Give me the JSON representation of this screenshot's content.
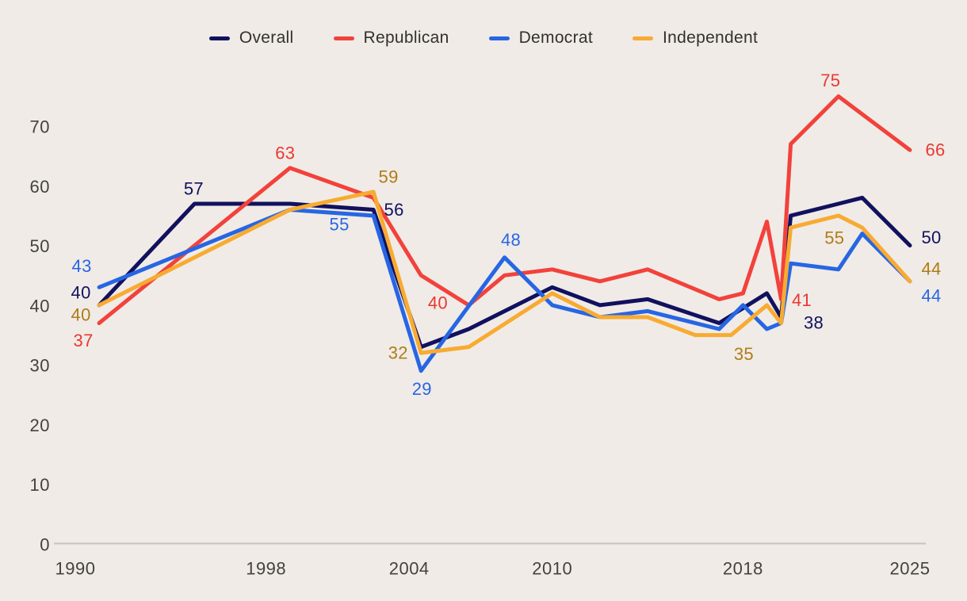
{
  "chart_data": {
    "type": "line",
    "title": "",
    "xlabel": "",
    "ylabel": "",
    "x_range": [
      1990,
      2025
    ],
    "y_range": [
      0,
      70
    ],
    "grid": false,
    "legend_position": "top-center",
    "background_color": "#f0ebe7",
    "axis_line_color": "#c8c3be",
    "tick_text_color": "#45423e",
    "x_ticks": [
      1990,
      1998,
      2004,
      2010,
      2018,
      2025
    ],
    "y_ticks": [
      0,
      10,
      20,
      30,
      40,
      50,
      60,
      70
    ],
    "series": [
      {
        "name": "Overall",
        "color": "#11115e",
        "label_color": "#11115e",
        "points": [
          [
            1991,
            40
          ],
          [
            1995,
            57
          ],
          [
            1999,
            57
          ],
          [
            2002.5,
            56
          ],
          [
            2004.5,
            33
          ],
          [
            2006.5,
            36
          ],
          [
            2010,
            43
          ],
          [
            2012,
            40
          ],
          [
            2014,
            41
          ],
          [
            2017,
            37
          ],
          [
            2019,
            42
          ],
          [
            2019.6,
            38
          ],
          [
            2020,
            55
          ],
          [
            2022,
            57
          ],
          [
            2023,
            58
          ],
          [
            2025,
            50
          ]
        ],
        "annotations": [
          {
            "text": "40",
            "x": 1991,
            "y": 40,
            "dx": -23,
            "dy": -16
          },
          {
            "text": "57",
            "x": 1995,
            "y": 57,
            "dx": -1,
            "dy": -19
          },
          {
            "text": "56",
            "x": 2002.5,
            "y": 56,
            "dx": 26,
            "dy": 0
          },
          {
            "text": "38",
            "x": 2019.6,
            "y": 38,
            "dx": 41,
            "dy": 7
          },
          {
            "text": "50",
            "x": 2025,
            "y": 50,
            "dx": 27,
            "dy": -10
          }
        ]
      },
      {
        "name": "Republican",
        "color": "#f2423b",
        "label_color": "#ea3831",
        "points": [
          [
            1991,
            37
          ],
          [
            1999,
            63
          ],
          [
            2002.5,
            58
          ],
          [
            2004.5,
            45
          ],
          [
            2006.5,
            40
          ],
          [
            2008,
            45
          ],
          [
            2010,
            46
          ],
          [
            2012,
            44
          ],
          [
            2014,
            46
          ],
          [
            2017,
            41
          ],
          [
            2018,
            42
          ],
          [
            2019,
            54
          ],
          [
            2019.6,
            41
          ],
          [
            2020,
            67
          ],
          [
            2022,
            75
          ],
          [
            2025,
            66
          ]
        ],
        "annotations": [
          {
            "text": "37",
            "x": 1991,
            "y": 37,
            "dx": -20,
            "dy": 22
          },
          {
            "text": "63",
            "x": 1999,
            "y": 63,
            "dx": -6,
            "dy": -19
          },
          {
            "text": "40",
            "x": 2006.5,
            "y": 40,
            "dx": -39,
            "dy": -3
          },
          {
            "text": "41",
            "x": 2019.6,
            "y": 41,
            "dx": 26,
            "dy": 1
          },
          {
            "text": "75",
            "x": 2022,
            "y": 75,
            "dx": -10,
            "dy": -20
          },
          {
            "text": "66",
            "x": 2025,
            "y": 66,
            "dx": 32,
            "dy": 0
          }
        ]
      },
      {
        "name": "Democrat",
        "color": "#2766e3",
        "label_color": "#2766e3",
        "points": [
          [
            1991,
            43
          ],
          [
            1999,
            56
          ],
          [
            2002.5,
            55
          ],
          [
            2004.5,
            29
          ],
          [
            2008,
            48
          ],
          [
            2010,
            40
          ],
          [
            2012,
            38
          ],
          [
            2014,
            39
          ],
          [
            2017,
            36
          ],
          [
            2018,
            40
          ],
          [
            2019,
            36
          ],
          [
            2019.6,
            37
          ],
          [
            2020,
            47
          ],
          [
            2022,
            46
          ],
          [
            2023,
            52
          ],
          [
            2025,
            44
          ]
        ],
        "annotations": [
          {
            "text": "43",
            "x": 1991,
            "y": 43,
            "dx": -22,
            "dy": -27
          },
          {
            "text": "55",
            "x": 2002.5,
            "y": 55,
            "dx": -43,
            "dy": 11
          },
          {
            "text": "29",
            "x": 2004.5,
            "y": 29,
            "dx": 1,
            "dy": 23
          },
          {
            "text": "48",
            "x": 2008,
            "y": 48,
            "dx": 8,
            "dy": -22
          },
          {
            "text": "44",
            "x": 2025,
            "y": 44,
            "dx": 27,
            "dy": 18
          }
        ]
      },
      {
        "name": "Independent",
        "color": "#f8ab32",
        "label_color": "#b07c15",
        "points": [
          [
            1991,
            40
          ],
          [
            1999,
            56
          ],
          [
            2002.5,
            59
          ],
          [
            2004.5,
            32
          ],
          [
            2006.5,
            33
          ],
          [
            2010,
            42
          ],
          [
            2012,
            38
          ],
          [
            2014,
            38
          ],
          [
            2016,
            35
          ],
          [
            2017.5,
            35
          ],
          [
            2019,
            40
          ],
          [
            2019.6,
            37
          ],
          [
            2020,
            53
          ],
          [
            2022,
            55
          ],
          [
            2023,
            53
          ],
          [
            2025,
            44
          ]
        ],
        "annotations": [
          {
            "text": "40",
            "x": 1991,
            "y": 40,
            "dx": -23,
            "dy": 12
          },
          {
            "text": "59",
            "x": 2002.5,
            "y": 59,
            "dx": 19,
            "dy": -19
          },
          {
            "text": "32",
            "x": 2004.5,
            "y": 32,
            "dx": -29,
            "dy": 0
          },
          {
            "text": "35",
            "x": 2017.5,
            "y": 35,
            "dx": 16,
            "dy": 24
          },
          {
            "text": "55",
            "x": 2022,
            "y": 55,
            "dx": -5,
            "dy": 28
          },
          {
            "text": "44",
            "x": 2025,
            "y": 44,
            "dx": 27,
            "dy": -16
          }
        ]
      }
    ]
  }
}
